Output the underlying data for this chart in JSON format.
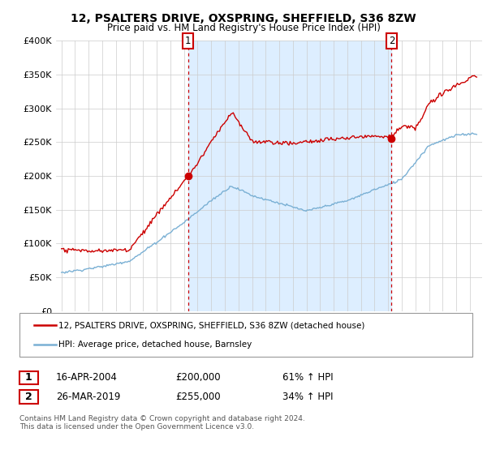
{
  "title": "12, PSALTERS DRIVE, OXSPRING, SHEFFIELD, S36 8ZW",
  "subtitle": "Price paid vs. HM Land Registry's House Price Index (HPI)",
  "legend_property": "12, PSALTERS DRIVE, OXSPRING, SHEFFIELD, S36 8ZW (detached house)",
  "legend_hpi": "HPI: Average price, detached house, Barnsley",
  "footnote": "Contains HM Land Registry data © Crown copyright and database right 2024.\nThis data is licensed under the Open Government Licence v3.0.",
  "sale1_date_str": "16-APR-2004",
  "sale1_price_str": "£200,000",
  "sale1_hpi_str": "61% ↑ HPI",
  "sale1_year": 2004.3,
  "sale1_value": 200000,
  "sale2_date_str": "26-MAR-2019",
  "sale2_price_str": "£255,000",
  "sale2_hpi_str": "34% ↑ HPI",
  "sale2_year": 2019.25,
  "sale2_value": 255000,
  "property_color": "#cc0000",
  "hpi_color": "#7ab0d4",
  "shade_color": "#ddeeff",
  "vline_color": "#cc0000",
  "grid_color": "#cccccc",
  "ylim": [
    0,
    400000
  ],
  "yticks": [
    0,
    50000,
    100000,
    150000,
    200000,
    250000,
    300000,
    350000,
    400000
  ],
  "xstart": 1995,
  "xend": 2025,
  "xlim_left": 1994.6,
  "xlim_right": 2025.9
}
